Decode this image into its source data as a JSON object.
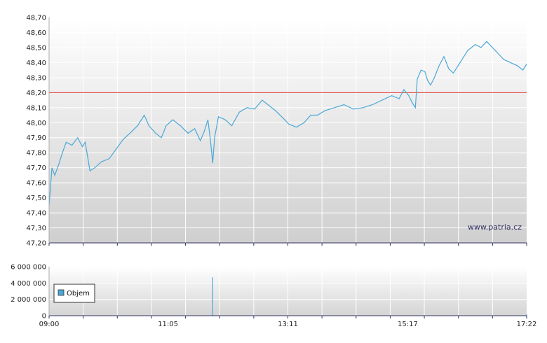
{
  "watermark": "www.patria.cz",
  "legend": {
    "label": "Objem"
  },
  "colors": {
    "price_line": "#4aa8d8",
    "reference_line": "#e03030",
    "volume_bar": "#4aa8d8",
    "plot_bg_top": "#ffffff",
    "plot_bg_bottom": "#cfcfcf",
    "grid": "#ffffff"
  },
  "chart_data": [
    {
      "type": "line",
      "name": "price",
      "ylim": [
        47.2,
        48.7
      ],
      "y_ticks": [
        "47,20",
        "47,30",
        "47,40",
        "47,50",
        "47,60",
        "47,70",
        "47,80",
        "47,90",
        "48,00",
        "48,10",
        "48,20",
        "48,30",
        "48,40",
        "48,50",
        "48,60",
        "48,70"
      ],
      "x_range": [
        "09:00",
        "17:22"
      ],
      "reference_line": 48.2,
      "grid": true,
      "series": [
        {
          "points": [
            [
              "09:00",
              47.45
            ],
            [
              "09:03",
              47.7
            ],
            [
              "09:06",
              47.65
            ],
            [
              "09:10",
              47.72
            ],
            [
              "09:14",
              47.8
            ],
            [
              "09:18",
              47.87
            ],
            [
              "09:24",
              47.85
            ],
            [
              "09:30",
              47.9
            ],
            [
              "09:35",
              47.84
            ],
            [
              "09:38",
              47.87
            ],
            [
              "09:43",
              47.68
            ],
            [
              "09:48",
              47.7
            ],
            [
              "09:55",
              47.74
            ],
            [
              "10:03",
              47.76
            ],
            [
              "10:10",
              47.82
            ],
            [
              "10:18",
              47.89
            ],
            [
              "10:25",
              47.93
            ],
            [
              "10:33",
              47.98
            ],
            [
              "10:40",
              48.05
            ],
            [
              "10:45",
              47.98
            ],
            [
              "10:52",
              47.93
            ],
            [
              "10:58",
              47.9
            ],
            [
              "11:03",
              47.98
            ],
            [
              "11:10",
              48.02
            ],
            [
              "11:18",
              47.98
            ],
            [
              "11:26",
              47.93
            ],
            [
              "11:33",
              47.96
            ],
            [
              "11:39",
              47.88
            ],
            [
              "11:43",
              47.94
            ],
            [
              "11:47",
              48.02
            ],
            [
              "11:50",
              47.86
            ],
            [
              "11:52",
              47.73
            ],
            [
              "11:54",
              47.9
            ],
            [
              "11:58",
              48.04
            ],
            [
              "12:05",
              48.02
            ],
            [
              "12:12",
              47.98
            ],
            [
              "12:20",
              48.07
            ],
            [
              "12:28",
              48.1
            ],
            [
              "12:36",
              48.09
            ],
            [
              "12:44",
              48.15
            ],
            [
              "12:50",
              48.12
            ],
            [
              "12:58",
              48.08
            ],
            [
              "13:06",
              48.03
            ],
            [
              "13:12",
              47.99
            ],
            [
              "13:20",
              47.97
            ],
            [
              "13:28",
              48.0
            ],
            [
              "13:35",
              48.05
            ],
            [
              "13:42",
              48.05
            ],
            [
              "13:50",
              48.08
            ],
            [
              "14:00",
              48.1
            ],
            [
              "14:10",
              48.12
            ],
            [
              "14:20",
              48.09
            ],
            [
              "14:30",
              48.1
            ],
            [
              "14:40",
              48.12
            ],
            [
              "14:50",
              48.15
            ],
            [
              "15:00",
              48.18
            ],
            [
              "15:08",
              48.16
            ],
            [
              "15:13",
              48.22
            ],
            [
              "15:18",
              48.18
            ],
            [
              "15:22",
              48.13
            ],
            [
              "15:25",
              48.1
            ],
            [
              "15:27",
              48.29
            ],
            [
              "15:31",
              48.35
            ],
            [
              "15:35",
              48.34
            ],
            [
              "15:38",
              48.28
            ],
            [
              "15:41",
              48.25
            ],
            [
              "15:45",
              48.3
            ],
            [
              "15:50",
              48.38
            ],
            [
              "15:55",
              48.44
            ],
            [
              "16:00",
              48.36
            ],
            [
              "16:05",
              48.33
            ],
            [
              "16:12",
              48.4
            ],
            [
              "16:20",
              48.48
            ],
            [
              "16:28",
              48.52
            ],
            [
              "16:34",
              48.5
            ],
            [
              "16:40",
              48.54
            ],
            [
              "16:46",
              48.5
            ],
            [
              "16:52",
              48.46
            ],
            [
              "16:58",
              48.42
            ],
            [
              "17:05",
              48.4
            ],
            [
              "17:12",
              48.38
            ],
            [
              "17:18",
              48.35
            ],
            [
              "17:22",
              48.39
            ]
          ]
        }
      ]
    },
    {
      "type": "bar",
      "name": "volume",
      "ylim": [
        0,
        6000000
      ],
      "y_ticks": [
        "0",
        "2 000 000",
        "4 000 000",
        "6 000 000"
      ],
      "x_ticks": [
        "09:00",
        "11:05",
        "13:11",
        "15:17",
        "17:22"
      ],
      "x_range": [
        "09:00",
        "17:22"
      ],
      "grid": true,
      "legend_position": "left",
      "series": [
        {
          "name": "Objem",
          "bars": [
            [
              "09:00",
              120000
            ],
            [
              "10:00",
              30000
            ],
            [
              "11:00",
              25000
            ],
            [
              "11:52",
              4700000
            ],
            [
              "13:00",
              20000
            ],
            [
              "14:00",
              25000
            ],
            [
              "15:00",
              30000
            ],
            [
              "15:27",
              60000
            ],
            [
              "16:30",
              25000
            ],
            [
              "17:22",
              150000
            ]
          ]
        }
      ]
    }
  ]
}
